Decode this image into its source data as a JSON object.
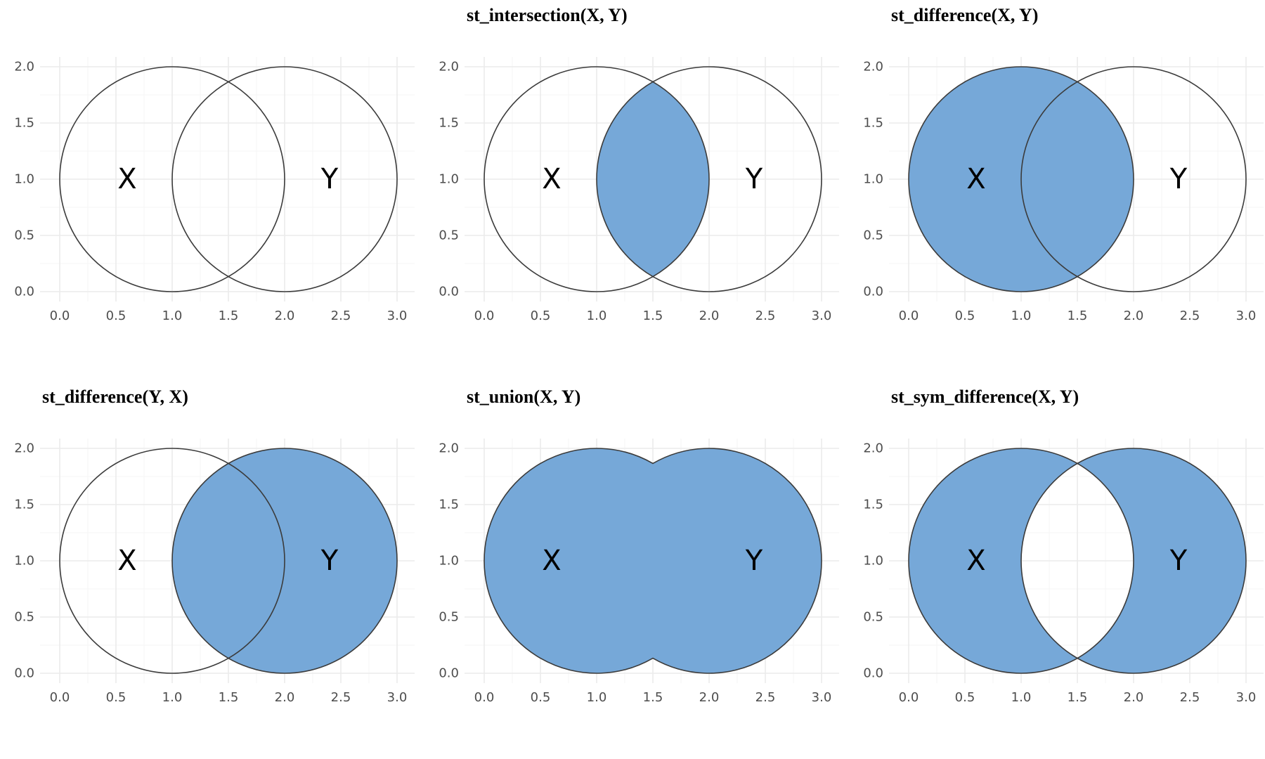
{
  "figure": {
    "fill_color": "#76A8D8",
    "outline_color": "#3b3b3b",
    "grid_color": "#ebebeb"
  },
  "chart_data": [
    {
      "type": "geometry-set-operation",
      "operation": "none",
      "title": "",
      "xlim": [
        0,
        3
      ],
      "ylim": [
        0,
        2
      ],
      "xticks": [
        "0.0",
        "0.5",
        "1.0",
        "1.5",
        "2.0",
        "2.5",
        "3.0"
      ],
      "yticks": [
        "0.0",
        "0.5",
        "1.0",
        "1.5",
        "2.0"
      ],
      "circles": [
        {
          "name": "X",
          "cx": 1,
          "cy": 1,
          "r": 1
        },
        {
          "name": "Y",
          "cx": 2,
          "cy": 1,
          "r": 1
        }
      ],
      "labels": [
        {
          "text": "X",
          "x": 0.6,
          "y": 1.0
        },
        {
          "text": "Y",
          "x": 2.4,
          "y": 1.0
        }
      ]
    },
    {
      "type": "geometry-set-operation",
      "operation": "intersection",
      "title": "st_intersection(X, Y)",
      "xlim": [
        0,
        3
      ],
      "ylim": [
        0,
        2
      ],
      "xticks": [
        "0.0",
        "0.5",
        "1.0",
        "1.5",
        "2.0",
        "2.5",
        "3.0"
      ],
      "yticks": [
        "0.0",
        "0.5",
        "1.0",
        "1.5",
        "2.0"
      ],
      "circles": [
        {
          "name": "X",
          "cx": 1,
          "cy": 1,
          "r": 1
        },
        {
          "name": "Y",
          "cx": 2,
          "cy": 1,
          "r": 1
        }
      ],
      "labels": [
        {
          "text": "X",
          "x": 0.6,
          "y": 1.0
        },
        {
          "text": "Y",
          "x": 2.4,
          "y": 1.0
        }
      ]
    },
    {
      "type": "geometry-set-operation",
      "operation": "difference_xy",
      "title": "st_difference(X, Y)",
      "xlim": [
        0,
        3
      ],
      "ylim": [
        0,
        2
      ],
      "xticks": [
        "0.0",
        "0.5",
        "1.0",
        "1.5",
        "2.0",
        "2.5",
        "3.0"
      ],
      "yticks": [
        "0.0",
        "0.5",
        "1.0",
        "1.5",
        "2.0"
      ],
      "circles": [
        {
          "name": "X",
          "cx": 1,
          "cy": 1,
          "r": 1
        },
        {
          "name": "Y",
          "cx": 2,
          "cy": 1,
          "r": 1
        }
      ],
      "labels": [
        {
          "text": "X",
          "x": 0.6,
          "y": 1.0
        },
        {
          "text": "Y",
          "x": 2.4,
          "y": 1.0
        }
      ]
    },
    {
      "type": "geometry-set-operation",
      "operation": "difference_yx",
      "title": "st_difference(Y, X)",
      "xlim": [
        0,
        3
      ],
      "ylim": [
        0,
        2
      ],
      "xticks": [
        "0.0",
        "0.5",
        "1.0",
        "1.5",
        "2.0",
        "2.5",
        "3.0"
      ],
      "yticks": [
        "0.0",
        "0.5",
        "1.0",
        "1.5",
        "2.0"
      ],
      "circles": [
        {
          "name": "X",
          "cx": 1,
          "cy": 1,
          "r": 1
        },
        {
          "name": "Y",
          "cx": 2,
          "cy": 1,
          "r": 1
        }
      ],
      "labels": [
        {
          "text": "X",
          "x": 0.6,
          "y": 1.0
        },
        {
          "text": "Y",
          "x": 2.4,
          "y": 1.0
        }
      ]
    },
    {
      "type": "geometry-set-operation",
      "operation": "union",
      "title": "st_union(X, Y)",
      "xlim": [
        0,
        3
      ],
      "ylim": [
        0,
        2
      ],
      "xticks": [
        "0.0",
        "0.5",
        "1.0",
        "1.5",
        "2.0",
        "2.5",
        "3.0"
      ],
      "yticks": [
        "0.0",
        "0.5",
        "1.0",
        "1.5",
        "2.0"
      ],
      "circles": [
        {
          "name": "X",
          "cx": 1,
          "cy": 1,
          "r": 1
        },
        {
          "name": "Y",
          "cx": 2,
          "cy": 1,
          "r": 1
        }
      ],
      "labels": [
        {
          "text": "X",
          "x": 0.6,
          "y": 1.0
        },
        {
          "text": "Y",
          "x": 2.4,
          "y": 1.0
        }
      ]
    },
    {
      "type": "geometry-set-operation",
      "operation": "sym_difference",
      "title": "st_sym_difference(X, Y)",
      "xlim": [
        0,
        3
      ],
      "ylim": [
        0,
        2
      ],
      "xticks": [
        "0.0",
        "0.5",
        "1.0",
        "1.5",
        "2.0",
        "2.5",
        "3.0"
      ],
      "yticks": [
        "0.0",
        "0.5",
        "1.0",
        "1.5",
        "2.0"
      ],
      "circles": [
        {
          "name": "X",
          "cx": 1,
          "cy": 1,
          "r": 1
        },
        {
          "name": "Y",
          "cx": 2,
          "cy": 1,
          "r": 1
        }
      ],
      "labels": [
        {
          "text": "X",
          "x": 0.6,
          "y": 1.0
        },
        {
          "text": "Y",
          "x": 2.4,
          "y": 1.0
        }
      ]
    }
  ]
}
